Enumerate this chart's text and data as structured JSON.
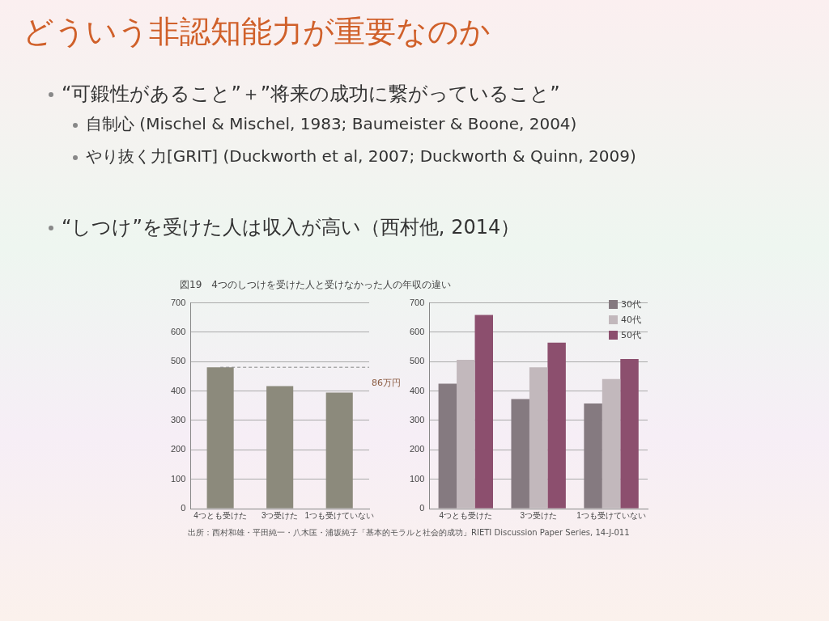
{
  "chart_data": [
    {
      "type": "bar",
      "title": "どういう非認知能力が重要なのか",
      "subtitle": "図19　4つのしつけを受けた人と受けなかった人の年収の違い",
      "annotations": [
        "“可鍛性があること”＋”将来の成功に繋がっていること”",
        "自制心 (Mischel & Mischel, 1983; Baumeister & Boone, 2004)",
        "やり抜く力[GRIT] (Duckworth et al, 2007; Duckworth & Quinn, 2009)",
        "“しつけ”を受けた人は収入が高い（西村他, 2014）",
        "86万円",
        "出所：西村和雄・平田純一・八木匡・浦坂純子「基本的モラルと社会的成功」RIETI Discussion Paper Series, 14-J-011"
      ],
      "categories": [
        "4つとも受けた",
        "3つ受けた",
        "1つも受けていない"
      ],
      "values": [
        481,
        417,
        395
      ],
      "color": "#8c8a7c",
      "ylim": [
        0,
        700
      ],
      "yticks": [
        0,
        100,
        200,
        300,
        400,
        500,
        600,
        700
      ],
      "grid": "y",
      "ref_lines": [
        {
          "axis": "y",
          "value": 481,
          "line_style": "dashed",
          "color": "#888888"
        }
      ]
    },
    {
      "type": "bar",
      "categories": [
        "4つとも受けた",
        "3つ受けた",
        "1つも受けていない"
      ],
      "series": [
        {
          "name": "30代",
          "color": "#857a80",
          "values": [
            425,
            373,
            358
          ]
        },
        {
          "name": "40代",
          "color": "#c2b8bc",
          "values": [
            506,
            481,
            441
          ]
        },
        {
          "name": "50代",
          "color": "#8c4f6e",
          "values": [
            659,
            565,
            509
          ]
        }
      ],
      "ylim": [
        0,
        700
      ],
      "yticks": [
        0,
        100,
        200,
        300,
        400,
        500,
        600,
        700
      ],
      "grid": "y",
      "legend": "top right"
    }
  ]
}
